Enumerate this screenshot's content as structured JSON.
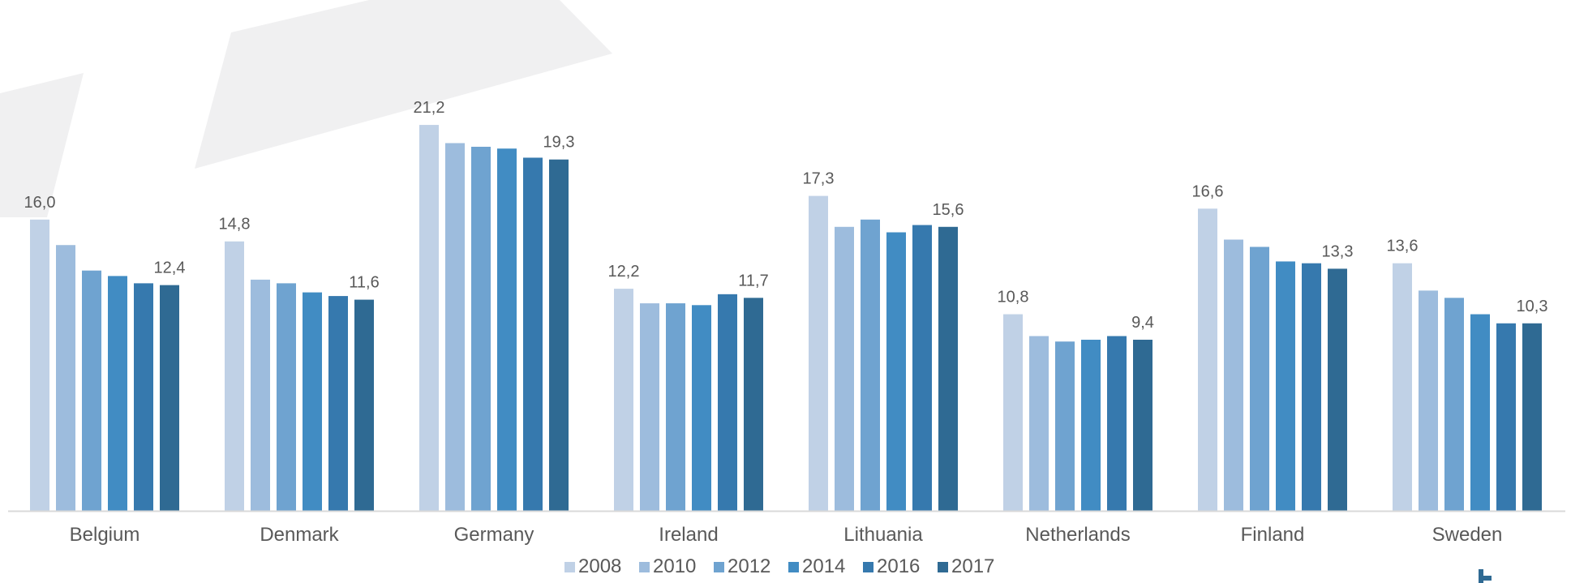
{
  "chart_data": {
    "type": "bar",
    "categories": [
      "Belgium",
      "Denmark",
      "Germany",
      "Ireland",
      "Lithuania",
      "Netherlands",
      "Finland",
      "Sweden"
    ],
    "series": [
      {
        "name": "2008",
        "color": "#c0d1e6",
        "values": [
          16.0,
          14.8,
          21.2,
          12.2,
          17.3,
          10.8,
          16.6,
          13.6
        ]
      },
      {
        "name": "2010",
        "color": "#9dbcdd",
        "values": [
          14.6,
          12.7,
          20.2,
          11.4,
          15.6,
          9.6,
          14.9,
          12.1
        ]
      },
      {
        "name": "2012",
        "color": "#6fa3d0",
        "values": [
          13.2,
          12.5,
          20.0,
          11.4,
          16.0,
          9.3,
          14.5,
          11.7
        ]
      },
      {
        "name": "2014",
        "color": "#418cc3",
        "values": [
          12.9,
          12.0,
          19.9,
          11.3,
          15.3,
          9.4,
          13.7,
          10.8
        ]
      },
      {
        "name": "2016",
        "color": "#3679ae",
        "values": [
          12.5,
          11.8,
          19.4,
          11.9,
          15.7,
          9.6,
          13.6,
          10.3
        ]
      },
      {
        "name": "2017",
        "color": "#2f6a93",
        "values": [
          12.4,
          11.6,
          19.3,
          11.7,
          15.6,
          9.4,
          13.3,
          10.3
        ]
      }
    ],
    "data_labels": [
      {
        "category": "Belgium",
        "first": "16,0",
        "last": "12,4"
      },
      {
        "category": "Denmark",
        "first": "14,8",
        "last": "11,6"
      },
      {
        "category": "Germany",
        "first": "21,2",
        "last": "19,3"
      },
      {
        "category": "Ireland",
        "first": "12,2",
        "last": "11,7"
      },
      {
        "category": "Lithuania",
        "first": "17,3",
        "last": "15,6"
      },
      {
        "category": "Netherlands",
        "first": "10,8",
        "last": "9,4"
      },
      {
        "category": "Finland",
        "first": "16,6",
        "last": "13,3"
      },
      {
        "category": "Sweden",
        "first": "13,6",
        "last": "10,3"
      }
    ],
    "ylim": [
      0,
      22.5
    ],
    "grid": false,
    "legend_position": "bottom-center",
    "title": "",
    "xlabel": "",
    "ylabel": ""
  },
  "colors": {
    "axis": "#d9d9d9",
    "text": "#595959",
    "background_shape": "#f0f0f1",
    "logo": "#2f6a93"
  }
}
